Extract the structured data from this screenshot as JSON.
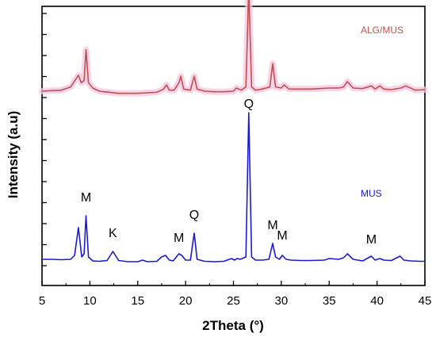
{
  "chart_data": {
    "type": "line",
    "xlabel": "2Theta (°)",
    "ylabel": "Intensity (a.u)",
    "xlim": [
      5,
      45
    ],
    "x_ticks": [
      "5",
      "10",
      "15",
      "20",
      "25",
      "30",
      "35",
      "40",
      "45"
    ],
    "y_tick_labels_shown": false,
    "grid": false,
    "series": [
      {
        "name": "ALG/MUS",
        "color": "#c0504d",
        "band_color": "#f4c6e1",
        "x": [
          5,
          6,
          7,
          8,
          8.5,
          8.8,
          9.1,
          9.4,
          9.6,
          9.85,
          10.3,
          11,
          12,
          13,
          14,
          15,
          16,
          17,
          17.7,
          18,
          18.3,
          18.8,
          19.3,
          19.5,
          19.8,
          20.5,
          20.9,
          21.2,
          22,
          23,
          24,
          25,
          25.3,
          25.8,
          26.3,
          26.6,
          26.9,
          27.3,
          28,
          28.8,
          29.1,
          29.4,
          30,
          30.3,
          30.8,
          32,
          33,
          34,
          35,
          36,
          36.5,
          36.9,
          37.5,
          38.5,
          39.4,
          39.8,
          40.3,
          40.7,
          41.5,
          42.5,
          43,
          44,
          45
        ],
        "y": [
          116,
          116.5,
          117,
          120,
          127,
          131,
          124,
          126,
          155,
          124,
          119,
          116,
          115,
          114,
          114,
          114,
          114.5,
          115,
          118,
          122,
          117,
          117,
          124,
          130,
          118,
          117,
          130,
          118,
          116,
          115.5,
          115.5,
          116,
          119,
          117,
          120,
          212,
          120,
          117,
          118,
          120,
          142,
          120,
          119,
          122,
          118,
          118,
          118,
          118.5,
          119,
          119,
          120,
          125,
          119,
          118.5,
          121,
          118,
          121,
          118,
          117.5,
          119,
          121,
          117,
          117.5
        ]
      },
      {
        "name": "MUS",
        "color": "#1a1ad6",
        "x": [
          5,
          6,
          7,
          8,
          8.4,
          8.8,
          9.15,
          9.4,
          9.6,
          9.85,
          10.3,
          11,
          11.8,
          12.4,
          13,
          14,
          15,
          15.5,
          16,
          17,
          17.5,
          17.9,
          18.3,
          18.7,
          19.3,
          19.6,
          20,
          20.5,
          20.9,
          21.2,
          22,
          23,
          24,
          24.8,
          25.1,
          25.4,
          25.7,
          26.3,
          26.6,
          26.9,
          27.3,
          28,
          28.7,
          29.1,
          29.4,
          29.8,
          30.1,
          30.5,
          31,
          32,
          33,
          34.5,
          35,
          36,
          36.5,
          36.9,
          37.5,
          38.5,
          39.4,
          39.8,
          40.3,
          40.7,
          41.5,
          42.4,
          42.8,
          43.5,
          44.5,
          45
        ],
        "y": [
          5,
          5,
          4.5,
          5,
          10,
          45,
          8,
          12,
          60,
          8,
          3,
          2.5,
          3.5,
          15,
          3.5,
          2,
          2,
          4,
          2,
          2.5,
          8,
          10,
          4,
          3,
          12,
          10,
          4,
          4,
          38,
          5,
          2.5,
          2,
          2.5,
          6,
          4,
          6,
          5,
          8,
          190,
          8,
          4,
          4,
          5,
          25,
          8,
          5,
          10,
          5,
          4,
          3.5,
          3.5,
          4,
          6,
          5,
          7,
          12,
          5,
          3,
          9,
          4,
          6,
          4,
          3.5,
          9,
          4,
          3,
          2.5,
          2.5
        ]
      }
    ],
    "annotations": [
      {
        "text": "M",
        "x": 9.6,
        "yref": 78
      },
      {
        "text": "K",
        "x": 12.4,
        "yref": 33
      },
      {
        "text": "M",
        "x": 19.3,
        "yref": 27
      },
      {
        "text": "Q",
        "x": 20.9,
        "yref": 56
      },
      {
        "text": "Q",
        "x": 26.6,
        "yref": 196
      },
      {
        "text": "M",
        "x": 29.1,
        "yref": 43
      },
      {
        "text": "M",
        "x": 30.1,
        "yref": 30
      },
      {
        "text": "M",
        "x": 39.4,
        "yref": 25
      }
    ]
  }
}
